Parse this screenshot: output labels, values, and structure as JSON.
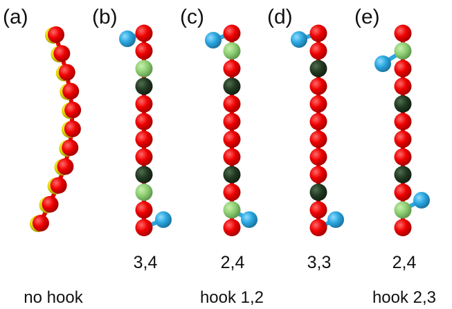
{
  "panels": [
    {
      "label": "(a)"
    },
    {
      "label": "(b)",
      "number": "3,4"
    },
    {
      "label": "(c)",
      "number": "2,4"
    },
    {
      "label": "(d)",
      "number": "3,3"
    },
    {
      "label": "(e)",
      "number": "2,4"
    }
  ],
  "captions": [
    "no hook",
    "hook 1,2",
    "hook 2,3"
  ]
}
